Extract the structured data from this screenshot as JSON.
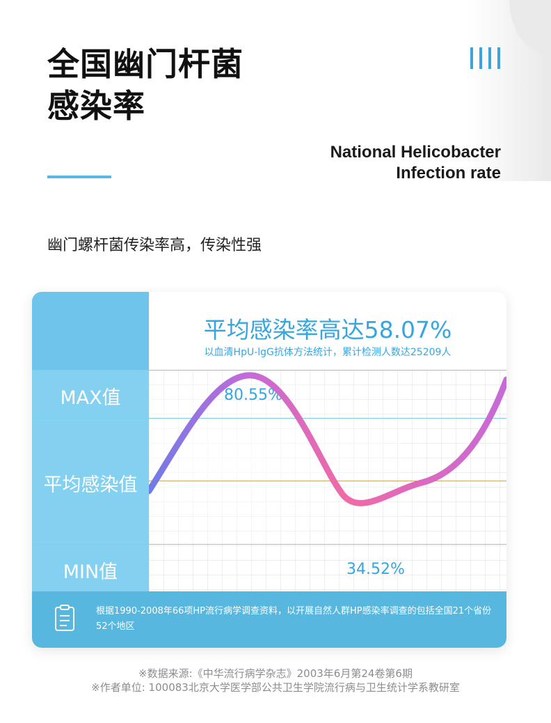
{
  "header": {
    "title_line1": "全国幽门杆菌",
    "title_line2": "感染率",
    "en_line1": "National Helicobacter",
    "en_line2": "Infection rate",
    "subtitle": "幽门螺杆菌传染率高，传染性强"
  },
  "card": {
    "headline": "平均感染率高达58.07%",
    "headline_sub": "以血清HpU-lgG抗体方法统计，累计检测人数达25209人",
    "labels": {
      "max": "MAX值",
      "avg": "平均感染值",
      "min": "MIN值"
    },
    "values": {
      "max": "80.55%",
      "min": "34.52%"
    },
    "curve": {
      "gradient_start": "#6f7be8",
      "gradient_mid": "#c56ad8",
      "gradient_end": "#f06aa6"
    },
    "note": "根据1990-2008年66项HP流行病学调查资料，以开展自然人群HP感染率调查的包括全国21个省份52个地区",
    "note_icon": "clipboard-icon"
  },
  "footer": {
    "source_line1": "※数据来源:《中华流行病学杂志》2003年6月第24卷第6期",
    "source_line2": "※作者单位: 100083北京大学医学部公共卫生学院流行病与卫生统计学系教研室"
  },
  "colors": {
    "accent_blue": "#35a6df",
    "label_column": "#83d0f0",
    "note_bar": "#58b7de"
  }
}
